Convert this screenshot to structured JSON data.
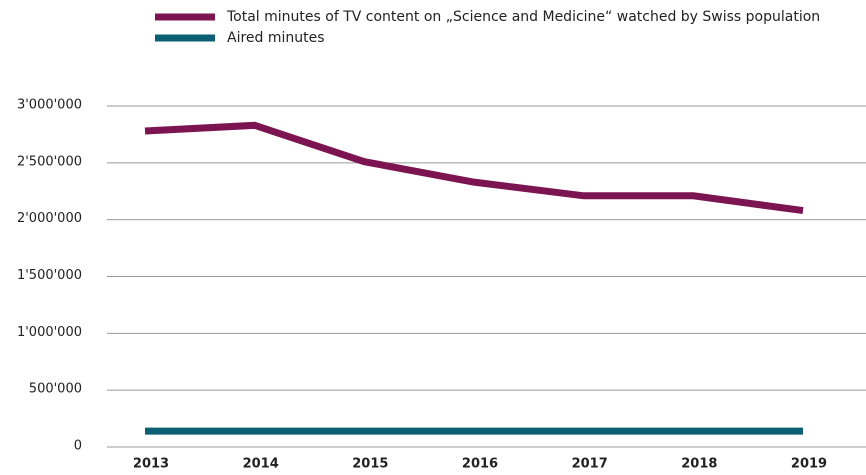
{
  "chart_data": {
    "type": "line",
    "categories": [
      "2013",
      "2014",
      "2015",
      "2016",
      "2017",
      "2018",
      "2019"
    ],
    "series": [
      {
        "name": "Total minutes of TV content on „Science and Medicine“ watched by Swiss population",
        "color": "#7b1450",
        "values": [
          2780000,
          2830000,
          2510000,
          2330000,
          2210000,
          2210000,
          2080000
        ]
      },
      {
        "name": "Aired minutes",
        "color": "#0b5f74",
        "values": [
          140000,
          140000,
          140000,
          140000,
          140000,
          140000,
          140000
        ]
      }
    ],
    "ylim": [
      0,
      3000000
    ],
    "yticks": [
      0,
      {
        "value": 500000,
        "label": "500'000"
      },
      {
        "value": 1000000,
        "label": "1'000'000"
      },
      {
        "value": 1500000,
        "label": "1'500'000"
      },
      {
        "value": 2000000,
        "label": "2'000'000"
      },
      {
        "value": 2500000,
        "label": "2'500'000"
      },
      {
        "value": 3000000,
        "label": "3'000'000"
      }
    ],
    "grid": true
  }
}
